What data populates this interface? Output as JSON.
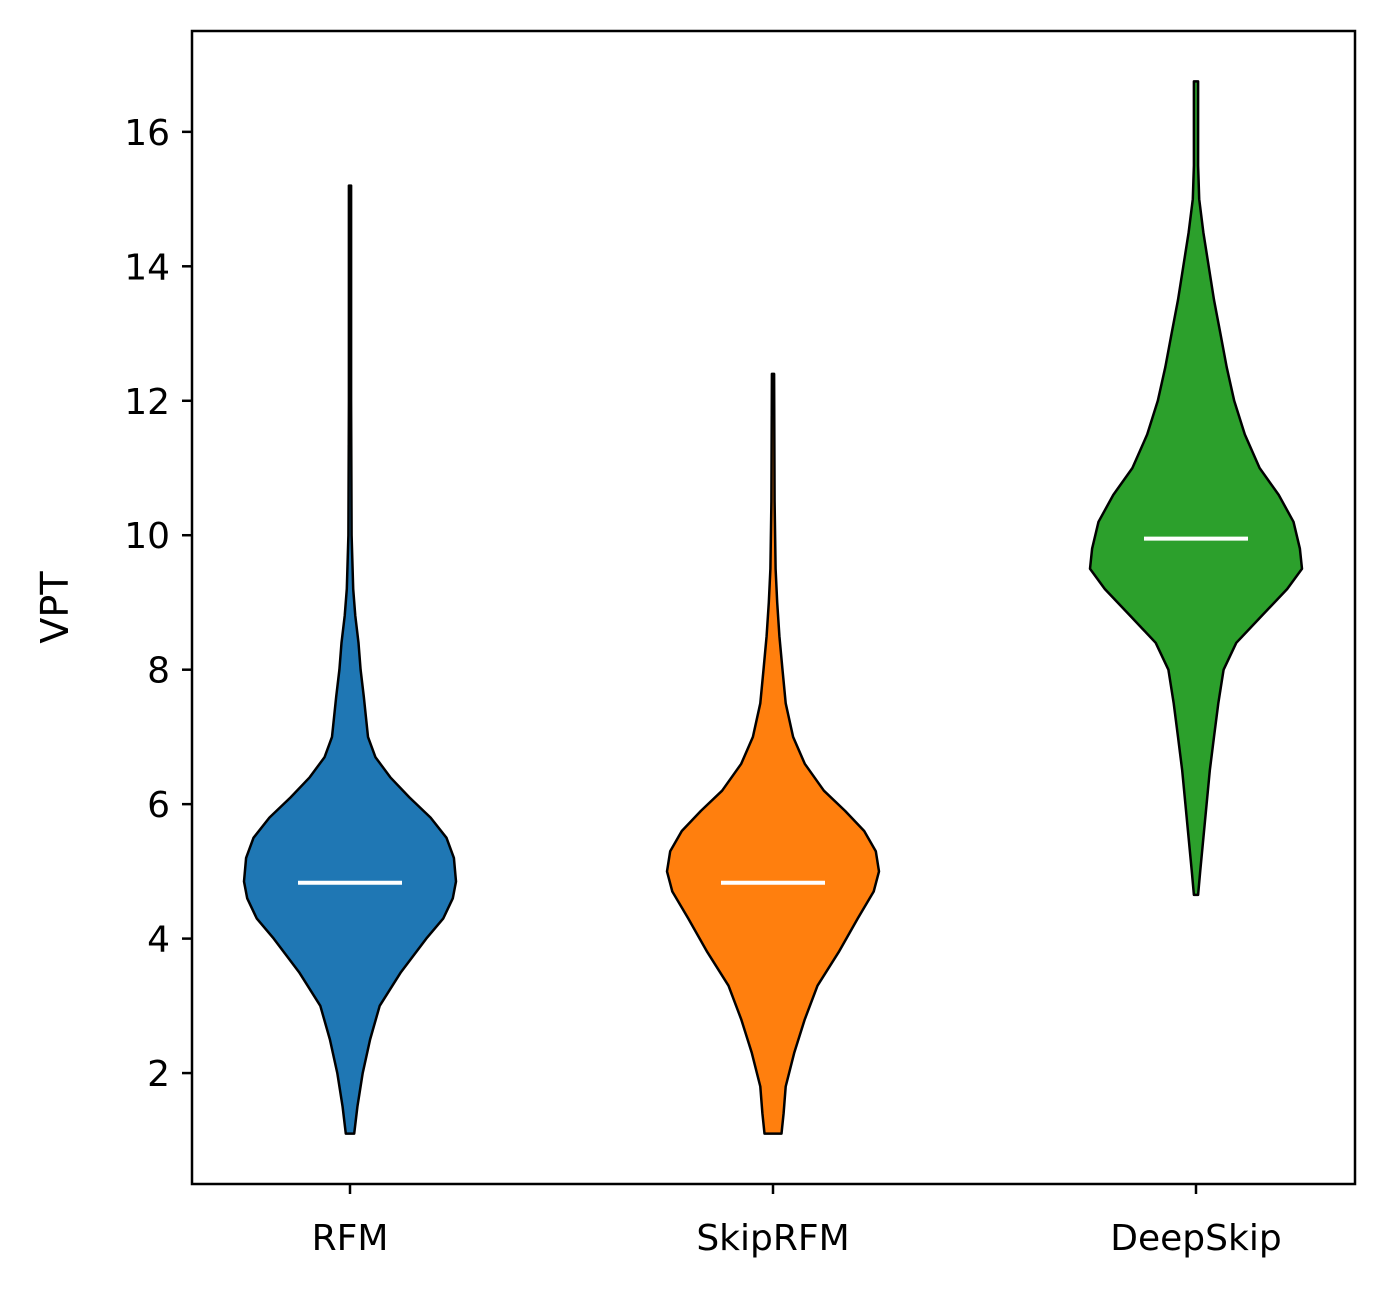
{
  "chart_data": {
    "type": "violin",
    "title": "",
    "xlabel": "",
    "ylabel": "VPT",
    "ylim": [
      0.35,
      17.5
    ],
    "yticks": [
      2,
      4,
      6,
      8,
      10,
      12,
      14,
      16
    ],
    "grid": false,
    "legend": "none",
    "categories": [
      "RFM",
      "SkipRFM",
      "DeepSkip"
    ],
    "series": [
      {
        "category": "RFM",
        "color": "#1f77b4",
        "min": 1.1,
        "max": 15.2,
        "median": 4.83,
        "density_profile": [
          [
            1.1,
            0.04
          ],
          [
            1.5,
            0.07
          ],
          [
            2.0,
            0.12
          ],
          [
            2.5,
            0.19
          ],
          [
            3.0,
            0.28
          ],
          [
            3.5,
            0.48
          ],
          [
            4.0,
            0.72
          ],
          [
            4.3,
            0.88
          ],
          [
            4.6,
            0.97
          ],
          [
            4.85,
            1.0
          ],
          [
            5.2,
            0.98
          ],
          [
            5.5,
            0.91
          ],
          [
            5.8,
            0.76
          ],
          [
            6.1,
            0.56
          ],
          [
            6.4,
            0.38
          ],
          [
            6.7,
            0.24
          ],
          [
            7.0,
            0.17
          ],
          [
            7.3,
            0.15
          ],
          [
            7.6,
            0.13
          ],
          [
            8.0,
            0.1
          ],
          [
            8.4,
            0.08
          ],
          [
            8.8,
            0.05
          ],
          [
            9.2,
            0.03
          ],
          [
            10.0,
            0.015
          ],
          [
            12.0,
            0.01
          ],
          [
            15.2,
            0.01
          ]
        ]
      },
      {
        "category": "SkipRFM",
        "color": "#ff7f0e",
        "min": 1.1,
        "max": 12.4,
        "median": 4.83,
        "density_profile": [
          [
            1.1,
            0.08
          ],
          [
            1.4,
            0.1
          ],
          [
            1.8,
            0.12
          ],
          [
            2.3,
            0.2
          ],
          [
            2.8,
            0.3
          ],
          [
            3.3,
            0.42
          ],
          [
            3.8,
            0.62
          ],
          [
            4.3,
            0.8
          ],
          [
            4.7,
            0.95
          ],
          [
            5.0,
            1.0
          ],
          [
            5.3,
            0.97
          ],
          [
            5.6,
            0.86
          ],
          [
            5.9,
            0.68
          ],
          [
            6.2,
            0.48
          ],
          [
            6.6,
            0.3
          ],
          [
            7.0,
            0.19
          ],
          [
            7.5,
            0.12
          ],
          [
            8.0,
            0.09
          ],
          [
            8.5,
            0.06
          ],
          [
            9.0,
            0.04
          ],
          [
            9.5,
            0.025
          ],
          [
            10.5,
            0.015
          ],
          [
            12.4,
            0.01
          ]
        ]
      },
      {
        "category": "DeepSkip",
        "color": "#2ca02c",
        "min": 4.65,
        "max": 16.75,
        "median": 9.95,
        "density_profile": [
          [
            4.65,
            0.02
          ],
          [
            5.0,
            0.04
          ],
          [
            5.5,
            0.07
          ],
          [
            6.0,
            0.1
          ],
          [
            6.5,
            0.13
          ],
          [
            7.0,
            0.17
          ],
          [
            7.5,
            0.21
          ],
          [
            8.0,
            0.26
          ],
          [
            8.4,
            0.38
          ],
          [
            8.8,
            0.62
          ],
          [
            9.2,
            0.86
          ],
          [
            9.5,
            1.0
          ],
          [
            9.8,
            0.98
          ],
          [
            10.2,
            0.92
          ],
          [
            10.6,
            0.78
          ],
          [
            11.0,
            0.6
          ],
          [
            11.5,
            0.46
          ],
          [
            12.0,
            0.36
          ],
          [
            12.5,
            0.29
          ],
          [
            13.0,
            0.23
          ],
          [
            13.5,
            0.17
          ],
          [
            14.0,
            0.12
          ],
          [
            14.5,
            0.07
          ],
          [
            15.0,
            0.03
          ],
          [
            15.5,
            0.02
          ],
          [
            16.75,
            0.02
          ]
        ]
      }
    ]
  }
}
